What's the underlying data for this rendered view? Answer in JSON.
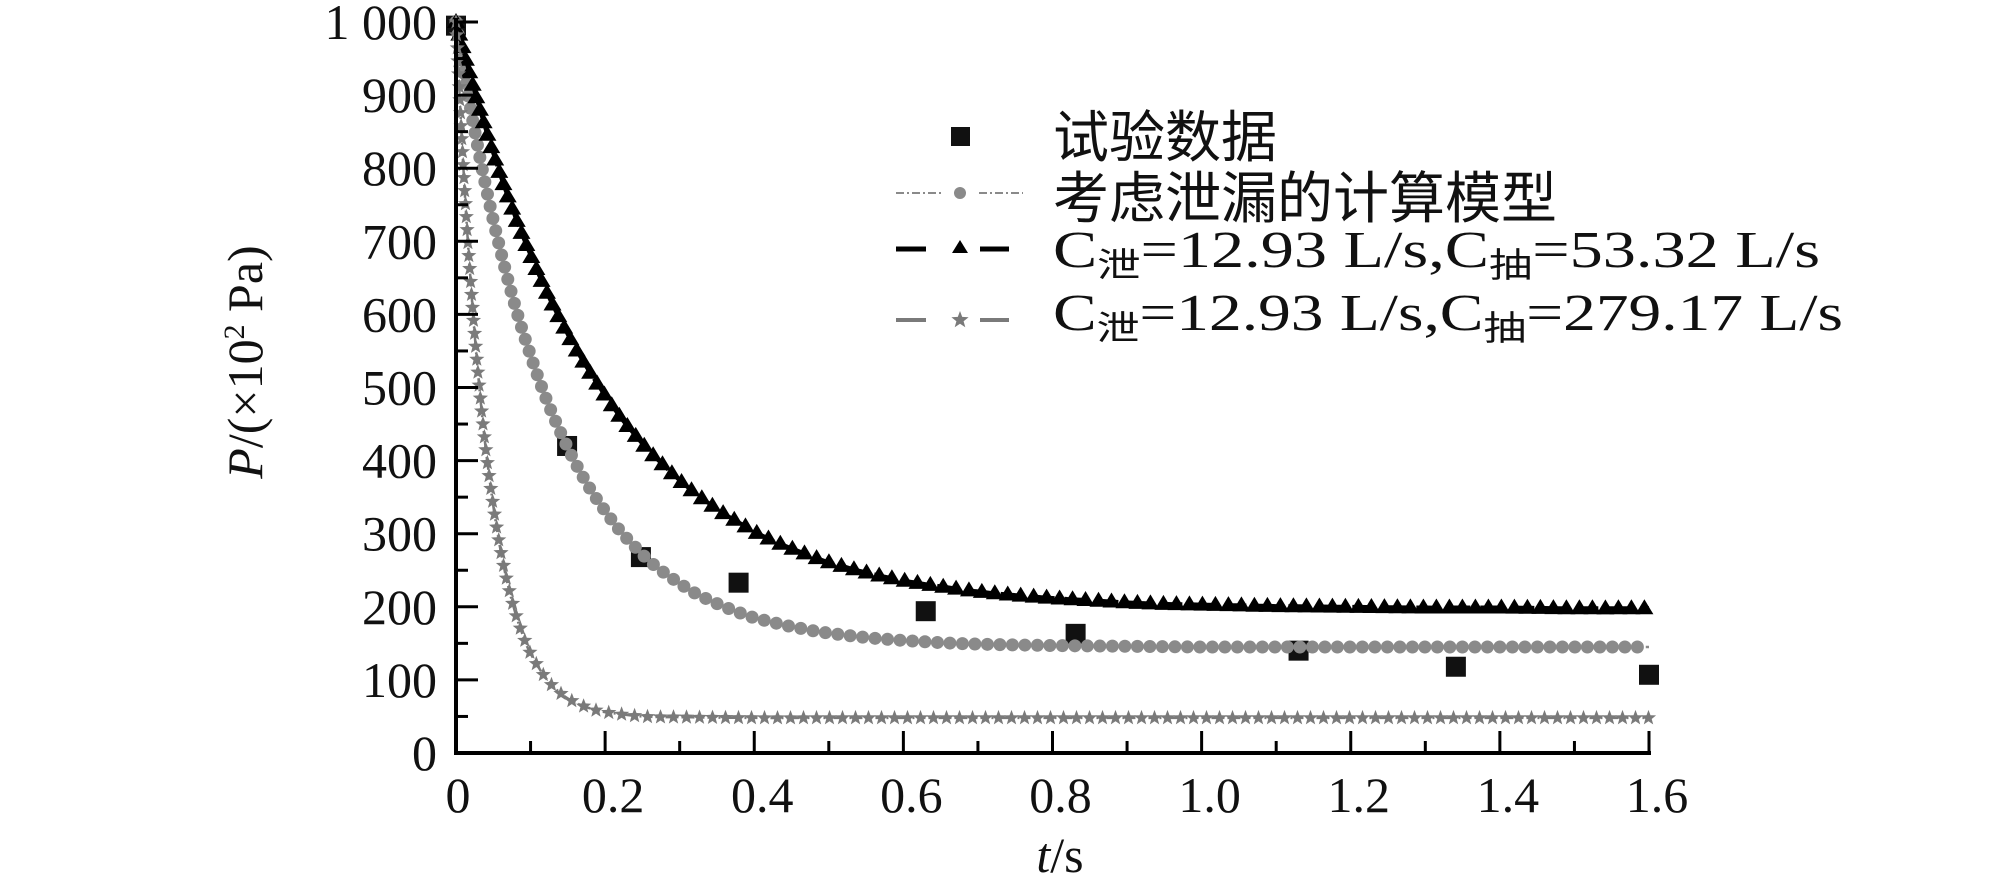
{
  "chart_data": {
    "type": "scatter",
    "title": "",
    "xlabel": "t/s",
    "ylabel": "P/(×10² Pa)",
    "xlim": [
      0,
      1.6
    ],
    "ylim": [
      0,
      1000
    ],
    "x_ticks": [
      0,
      0.2,
      0.4,
      0.6,
      0.8,
      1.0,
      1.2,
      1.4,
      1.6
    ],
    "x_tick_labels": [
      "0",
      "0.2",
      "0.4",
      "0.6",
      "0.8",
      "1.0",
      "1.2",
      "1.4",
      "1.6"
    ],
    "y_ticks": [
      0,
      100,
      200,
      300,
      400,
      500,
      600,
      700,
      800,
      900,
      1000
    ],
    "y_tick_labels": [
      "0",
      "100",
      "200",
      "300",
      "400",
      "500",
      "600",
      "700",
      "800",
      "900",
      "1 000"
    ],
    "grid": false,
    "legend_position": "upper right (inside)",
    "series": [
      {
        "name": "试验数据",
        "kind": "scatter",
        "marker": "square",
        "color": "#111111",
        "x": [
          0,
          0.149,
          0.248,
          0.379,
          0.63,
          0.831,
          1.13,
          1.341,
          1.6
        ],
        "y": [
          995,
          420,
          268,
          233,
          194,
          163,
          140,
          118,
          107
        ]
      },
      {
        "name": "考虑泄漏的计算模型",
        "kind": "line+markers",
        "marker": "circle",
        "line_style": "dash-dot",
        "color": "#8a8a8a",
        "x": [
          0,
          0.02,
          0.04,
          0.06,
          0.08,
          0.1,
          0.12,
          0.14,
          0.16,
          0.18,
          0.2,
          0.22,
          0.24,
          0.26,
          0.28,
          0.3,
          0.32,
          0.34,
          0.36,
          0.38,
          0.4,
          0.42,
          0.44,
          0.46,
          0.48,
          0.5,
          0.55,
          0.6,
          0.65,
          0.7,
          0.8,
          0.9,
          1.0,
          1.1,
          1.2,
          1.3,
          1.4,
          1.5,
          1.6
        ],
        "y": [
          1000,
          879,
          775,
          686,
          609,
          544,
          487,
          439,
          397,
          361,
          331,
          304,
          282,
          262,
          246,
          232,
          219,
          209,
          200,
          192,
          185,
          180,
          175,
          171,
          167,
          164,
          158,
          154,
          151,
          149,
          147,
          146,
          145,
          145,
          145,
          145,
          145,
          145,
          145
        ]
      },
      {
        "name": "C泄=12.93 L/s,C抽=53.32 L/s",
        "kind": "line+markers",
        "marker": "triangle",
        "line_style": "dash",
        "color": "#000000",
        "x": [
          0,
          0.02,
          0.04,
          0.06,
          0.08,
          0.1,
          0.12,
          0.14,
          0.16,
          0.18,
          0.2,
          0.22,
          0.24,
          0.26,
          0.28,
          0.3,
          0.32,
          0.34,
          0.36,
          0.38,
          0.4,
          0.42,
          0.44,
          0.46,
          0.48,
          0.5,
          0.55,
          0.6,
          0.65,
          0.7,
          0.75,
          0.8,
          0.85,
          0.9,
          0.95,
          1.0,
          1.1,
          1.2,
          1.3,
          1.4,
          1.5,
          1.6
        ],
        "y": [
          1000,
          923,
          853,
          789,
          732,
          681,
          634,
          592,
          554,
          520,
          489,
          460,
          435,
          412,
          392,
          373,
          356,
          341,
          327,
          315,
          303,
          293,
          284,
          276,
          268,
          261,
          247,
          236,
          228,
          221,
          216,
          212,
          209,
          206,
          204,
          203,
          201,
          200,
          199,
          199,
          198,
          198
        ]
      },
      {
        "name": "C泄=12.93 L/s,C抽=279.17 L/s",
        "kind": "line+markers",
        "marker": "star",
        "line_style": "dash-dot-dot",
        "color": "#7a7a7a",
        "x": [
          0,
          0.01,
          0.02,
          0.03,
          0.04,
          0.05,
          0.06,
          0.07,
          0.08,
          0.09,
          0.1,
          0.12,
          0.14,
          0.16,
          0.18,
          0.2,
          0.25,
          0.3,
          0.4,
          0.5,
          0.6,
          0.8,
          1.0,
          1.2,
          1.4,
          1.6
        ],
        "y": [
          1000,
          798,
          639,
          514,
          415,
          338,
          276,
          228,
          190,
          160,
          136,
          103,
          82,
          69,
          61,
          56,
          50,
          49,
          48,
          48,
          48,
          48,
          48,
          48,
          48,
          48
        ]
      }
    ]
  },
  "axes": {
    "x_title_italic": "t",
    "x_title_rest": "/s",
    "y_title_italic": "P",
    "y_title_rest": "/(×10",
    "y_title_sup": "2",
    "y_title_end": " Pa)"
  },
  "legend": {
    "items": [
      {
        "label": "试验数据",
        "marker": "square"
      },
      {
        "label": "考虑泄漏的计算模型",
        "marker": "circle"
      },
      {
        "label_parts": [
          "C",
          "泄",
          "=12.93 L/s,C",
          "抽",
          "=53.32 L/s"
        ],
        "marker": "triangle"
      },
      {
        "label_parts": [
          "C",
          "泄",
          "=12.93 L/s,C",
          "抽",
          "=279.17 L/s"
        ],
        "marker": "star"
      }
    ]
  }
}
